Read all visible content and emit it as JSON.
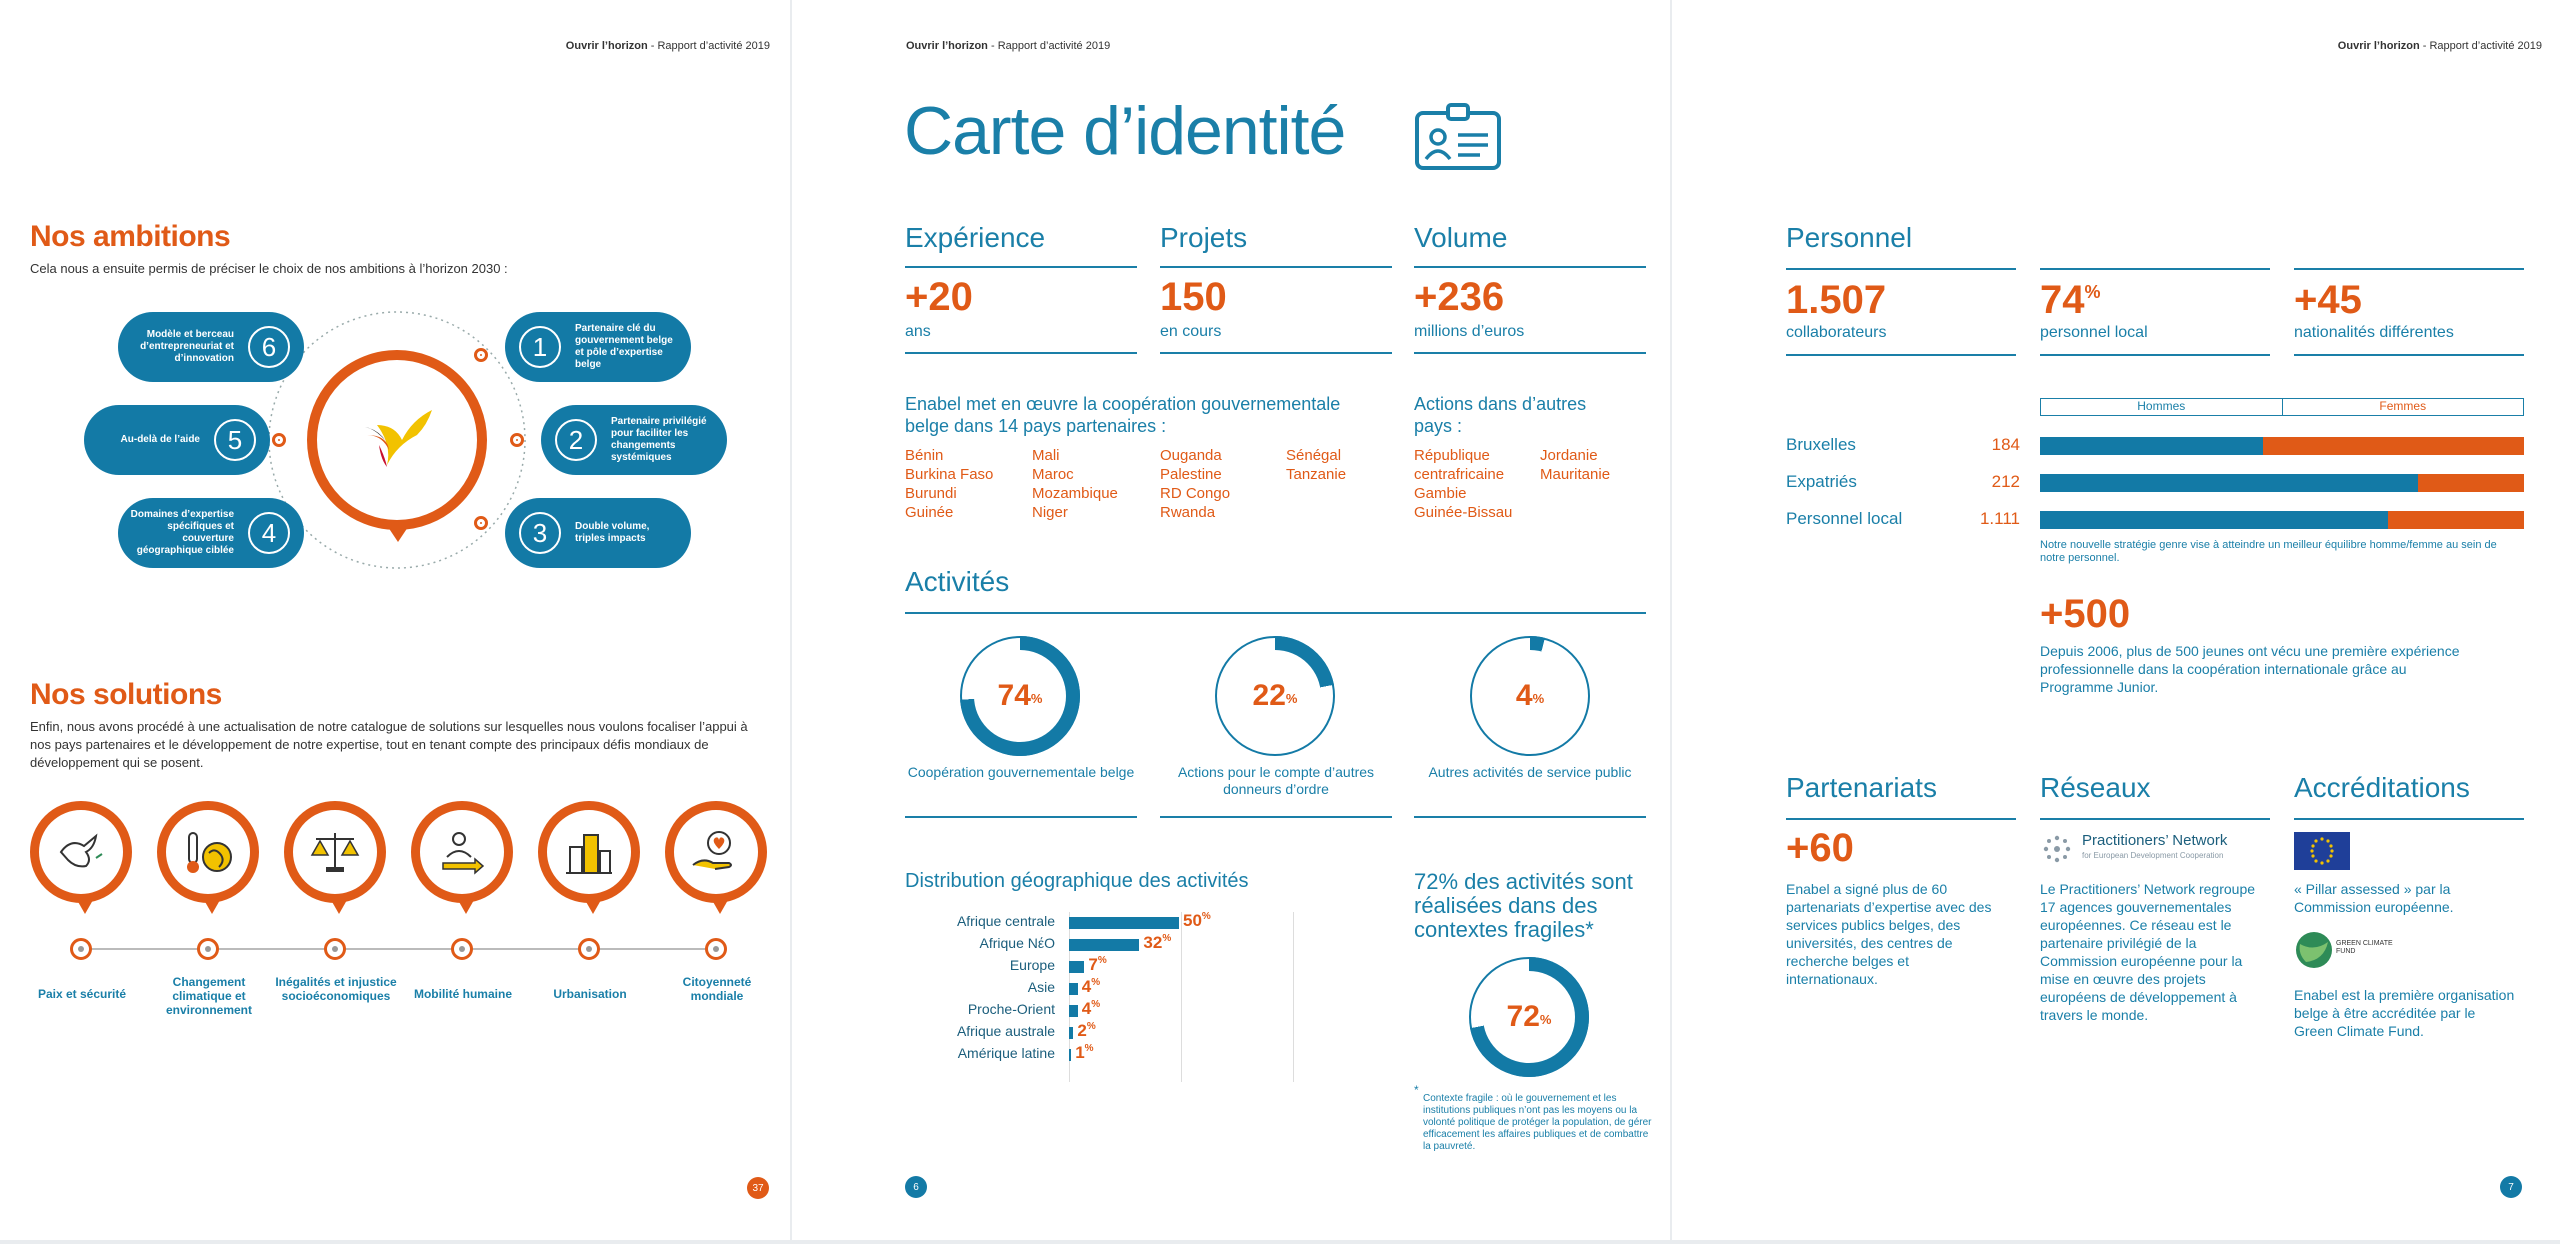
{
  "header": {
    "brand": "Ouvrir l’horizon",
    "sep": " - ",
    "report": "Rapport d’activité 2019"
  },
  "left": {
    "ambitions_title": "Nos ambitions",
    "ambitions_intro": "Cela nous a ensuite permis de préciser le choix de nos ambitions à l’horizon 2030 :",
    "ambitions": [
      {
        "n": "1",
        "text": "Partenaire clé du gouvernement belge et pôle d’expertise belge"
      },
      {
        "n": "2",
        "text": "Partenaire privilégié pour faciliter les changements systémiques"
      },
      {
        "n": "3",
        "text": "Double volume, triples impacts"
      },
      {
        "n": "4",
        "text": "Domaines d’expertise spécifiques et couverture géographique ciblée"
      },
      {
        "n": "5",
        "text": "Au-delà de l’aide"
      },
      {
        "n": "6",
        "text": "Modèle et berceau d’entrepreneuriat et d’innovation"
      }
    ],
    "solutions_title": "Nos solutions",
    "solutions_intro": "Enfin, nous avons procédé à une actualisation de notre catalogue de solutions sur lesquelles nous voulons focaliser l’appui à nos pays partenaires et le développement de notre expertise, tout en tenant compte des principaux défis mondiaux de développement qui se posent.",
    "solutions": [
      {
        "label": "Paix et sécurité",
        "icon": "dove-icon"
      },
      {
        "label": "Changement climatique et environnement",
        "icon": "thermometer-globe-icon"
      },
      {
        "label": "Inégalités et injustice socioéconomiques",
        "icon": "scales-icon"
      },
      {
        "label": "Mobilité humaine",
        "icon": "people-arrow-icon"
      },
      {
        "label": "Urbanisation",
        "icon": "city-icon"
      },
      {
        "label": "Citoyenneté mondiale",
        "icon": "hand-heart-icon"
      }
    ],
    "page_number": "37"
  },
  "middle": {
    "title": "Carte d’identité",
    "experience": {
      "heading": "Expérience",
      "value": "+20",
      "unit": "ans"
    },
    "projets": {
      "heading": "Projets",
      "value": "150",
      "unit": "en cours"
    },
    "volume": {
      "heading": "Volume",
      "value": "+236",
      "unit": "millions d’euros"
    },
    "partners_intro": "Enabel met en œuvre la coopération gouvernementale belge dans 14 pays partenaires :",
    "partner_cols": [
      [
        "Bénin",
        "Burkina Faso",
        "Burundi",
        "Guinée"
      ],
      [
        "Mali",
        "Maroc",
        "Mozambique",
        "Niger"
      ],
      [
        "Ouganda",
        "Palestine",
        "RD Congo",
        "Rwanda"
      ],
      [
        "Sénégal",
        "Tanzanie"
      ]
    ],
    "other_intro": "Actions dans d’autres pays :",
    "other_cols": [
      [
        "République centrafricaine",
        "Gambie",
        "Guinée-Bissau"
      ],
      [
        "Jordanie",
        "Mauritanie"
      ]
    ],
    "activities_title": "Activités",
    "rings": [
      {
        "pct": 74,
        "label": "74",
        "caption": "Coopération gouvernementale belge"
      },
      {
        "pct": 22,
        "label": "22",
        "caption": "Actions pour le compte d’autres donneurs d’ordre"
      },
      {
        "pct": 4,
        "label": "4",
        "caption": "Autres activités de service public"
      }
    ],
    "pct_sign": "%",
    "geo_title": "Distribution géographique des activités",
    "chart_data": {
      "type": "bar",
      "orientation": "horizontal",
      "title": "Distribution géographique des activités",
      "categories": [
        "Afrique centrale",
        "Afrique NέO",
        "Europe",
        "Asie",
        "Proche-Orient",
        "Afrique australe",
        "Amérique latine"
      ],
      "values": [
        50,
        32,
        7,
        4,
        4,
        2,
        1
      ],
      "unit": "%",
      "color": "#137aa6"
    },
    "fragile_title": "72% des activités sont réalisées dans des contextes fragiles*",
    "fragile_ring": {
      "pct": 72,
      "label": "72"
    },
    "fragile_note": "Contexte fragile : où le gouvernement et les institutions publiques n’ont pas les moyens ou la volonté politique de protéger la population, de gérer efficacement les affaires publiques et de combattre la pauvreté.",
    "fragile_star": "*",
    "page_number": "6"
  },
  "right": {
    "personnel_title": "Personnel",
    "stat1": {
      "value": "1.507",
      "unit": "collaborateurs"
    },
    "stat2": {
      "value": "74",
      "sup": "%",
      "unit": "personnel local"
    },
    "stat3": {
      "value": "+45",
      "unit": "nationalités différentes"
    },
    "legend_men": "Hommes",
    "legend_women": "Femmes",
    "staff": [
      {
        "label": "Bruxelles",
        "count": "184",
        "men_share": 0.46
      },
      {
        "label": "Expatriés",
        "count": "212",
        "men_share": 0.78
      },
      {
        "label": "Personnel local",
        "count": "1.111",
        "men_share": 0.72
      }
    ],
    "gender_note": "Notre nouvelle stratégie genre vise à atteindre un meilleur équilibre homme/femme au sein de notre personnel.",
    "junior_value": "+500",
    "junior_text": "Depuis 2006, plus de 500 jeunes ont vécu une première expérience professionnelle dans la coopération internationale grâce au Programme Junior.",
    "partenariats": {
      "title": "Partenariats",
      "value": "+60",
      "text": "Enabel a signé plus de 60 partenariats d’expertise avec des services publics belges, des universités, des centres de recherche belges et internationaux."
    },
    "reseaux": {
      "title": "Réseaux",
      "logo_name": "Practitioners’ Network",
      "logo_sub": "for European Development Cooperation",
      "text": "Le Practitioners’ Network regroupe 17 agences gouvernementales européennes. Ce réseau est le partenaire privilégié de la Commission européenne pour la mise en œuvre des projets européens de développement à travers le monde."
    },
    "accreditations": {
      "title": "Accréditations",
      "text1": "« Pillar assessed » par la Commission européenne.",
      "gcf_logo": "GREEN CLIMATE FUND",
      "text2": "Enabel est la première organisation belge à être accréditée par le Green Climate Fund."
    },
    "page_number": "7"
  },
  "colors": {
    "orange": "#e05a17",
    "blue": "#1a7fa8",
    "dark_blue": "#137aa6"
  }
}
